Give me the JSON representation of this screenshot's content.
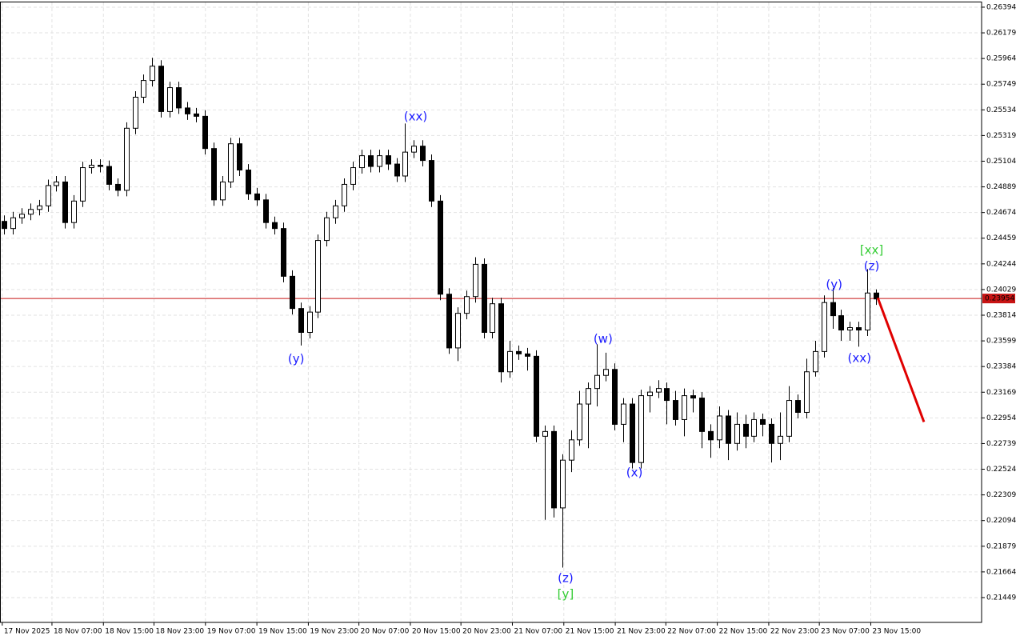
{
  "chart_data": {
    "type": "candlestick",
    "open": [
      0.246,
      0.2454,
      0.2463,
      0.2466,
      0.247,
      0.2473,
      0.249,
      0.2493,
      0.2459,
      0.2477,
      0.2505,
      0.2507,
      0.2506,
      0.2491,
      0.2486,
      0.2538,
      0.2564,
      0.2578,
      0.259,
      0.2552,
      0.2572,
      0.2555,
      0.255,
      0.2548,
      0.2521,
      0.2478,
      0.2493,
      0.2525,
      0.2503,
      0.2483,
      0.2478,
      0.2459,
      0.2454,
      0.2414,
      0.2387,
      0.2367,
      0.2384,
      0.2444,
      0.2463,
      0.2473,
      0.2491,
      0.2505,
      0.2515,
      0.2506,
      0.2515,
      0.2508,
      0.2498,
      0.2518,
      0.2523,
      0.2511,
      0.2477,
      0.2399,
      0.2354,
      0.2383,
      0.2397,
      0.2424,
      0.2367,
      0.2391,
      0.2334,
      0.2351,
      0.2349,
      0.2347,
      0.228,
      0.2284,
      0.222,
      0.226,
      0.2277,
      0.2307,
      0.232,
      0.2331,
      0.2336,
      0.229,
      0.2307,
      0.2258,
      0.2314,
      0.2317,
      0.232,
      0.231,
      0.2294,
      0.2314,
      0.2312,
      0.2284,
      0.2277,
      0.2297,
      0.2274,
      0.229,
      0.228,
      0.2294,
      0.229,
      0.2274,
      0.228,
      0.231,
      0.23,
      0.2334,
      0.2351,
      0.2392,
      0.2381,
      0.2369,
      0.2371,
      0.2369,
      0.24
    ],
    "high": [
      0.2465,
      0.2468,
      0.2471,
      0.2475,
      0.2478,
      0.2495,
      0.2498,
      0.2498,
      0.2482,
      0.251,
      0.2512,
      0.2512,
      0.2511,
      0.2496,
      0.2543,
      0.2569,
      0.2583,
      0.2597,
      0.2595,
      0.2577,
      0.2577,
      0.256,
      0.2555,
      0.2553,
      0.2526,
      0.2498,
      0.253,
      0.253,
      0.2508,
      0.2488,
      0.2483,
      0.2464,
      0.2459,
      0.2419,
      0.2392,
      0.2389,
      0.2449,
      0.2468,
      0.2478,
      0.2496,
      0.251,
      0.252,
      0.252,
      0.252,
      0.252,
      0.2513,
      0.2542,
      0.2528,
      0.2528,
      0.2516,
      0.2482,
      0.2404,
      0.2388,
      0.2402,
      0.243,
      0.2429,
      0.2396,
      0.2396,
      0.236,
      0.2356,
      0.2354,
      0.2352,
      0.2289,
      0.2289,
      0.2265,
      0.2285,
      0.2318,
      0.2325,
      0.2357,
      0.235,
      0.2341,
      0.2312,
      0.2312,
      0.2319,
      0.2322,
      0.2327,
      0.2325,
      0.2318,
      0.232,
      0.2319,
      0.2317,
      0.229,
      0.2305,
      0.2302,
      0.23,
      0.2298,
      0.23,
      0.2299,
      0.2295,
      0.23,
      0.2322,
      0.2315,
      0.2345,
      0.236,
      0.2398,
      0.2404,
      0.2386,
      0.2376,
      0.2376,
      0.242,
      0.2403
    ],
    "low": [
      0.2449,
      0.2449,
      0.2458,
      0.2461,
      0.2465,
      0.2468,
      0.2485,
      0.2454,
      0.2454,
      0.2472,
      0.25,
      0.2501,
      0.2486,
      0.2481,
      0.2481,
      0.2533,
      0.2559,
      0.2573,
      0.2547,
      0.2547,
      0.255,
      0.2545,
      0.2543,
      0.2516,
      0.2473,
      0.2473,
      0.2488,
      0.2498,
      0.2478,
      0.2473,
      0.2454,
      0.2449,
      0.2409,
      0.2382,
      0.2356,
      0.2362,
      0.2379,
      0.2439,
      0.2458,
      0.2468,
      0.2486,
      0.25,
      0.2501,
      0.2501,
      0.2503,
      0.2493,
      0.2493,
      0.2513,
      0.2506,
      0.2472,
      0.2394,
      0.2349,
      0.2343,
      0.2378,
      0.2392,
      0.2362,
      0.2362,
      0.2325,
      0.2329,
      0.2344,
      0.2335,
      0.2275,
      0.221,
      0.2212,
      0.217,
      0.225,
      0.2272,
      0.227,
      0.2305,
      0.2326,
      0.2285,
      0.2275,
      0.2253,
      0.2253,
      0.23,
      0.2312,
      0.229,
      0.2289,
      0.228,
      0.23,
      0.227,
      0.2262,
      0.227,
      0.226,
      0.2268,
      0.227,
      0.2275,
      0.228,
      0.2258,
      0.226,
      0.2275,
      0.2295,
      0.2295,
      0.233,
      0.2346,
      0.237,
      0.236,
      0.236,
      0.2355,
      0.2364,
      0.239
    ],
    "close": [
      0.2454,
      0.2463,
      0.2466,
      0.247,
      0.2473,
      0.249,
      0.2493,
      0.2459,
      0.2477,
      0.2505,
      0.2507,
      0.2506,
      0.2491,
      0.2486,
      0.2538,
      0.2564,
      0.2578,
      0.259,
      0.2552,
      0.2572,
      0.2555,
      0.255,
      0.2548,
      0.2521,
      0.2478,
      0.2493,
      0.2525,
      0.2503,
      0.2483,
      0.2478,
      0.2459,
      0.2454,
      0.2414,
      0.2387,
      0.2367,
      0.2384,
      0.2444,
      0.2463,
      0.2473,
      0.2491,
      0.2505,
      0.2515,
      0.2506,
      0.2515,
      0.2508,
      0.2498,
      0.2518,
      0.2523,
      0.2511,
      0.2477,
      0.2399,
      0.2354,
      0.2383,
      0.2397,
      0.2424,
      0.2367,
      0.2391,
      0.2334,
      0.2351,
      0.2349,
      0.2347,
      0.228,
      0.2284,
      0.222,
      0.226,
      0.2277,
      0.2307,
      0.232,
      0.2331,
      0.2336,
      0.229,
      0.2307,
      0.2258,
      0.2314,
      0.2317,
      0.232,
      0.231,
      0.2294,
      0.2314,
      0.2312,
      0.2284,
      0.2277,
      0.2297,
      0.2274,
      0.229,
      0.228,
      0.2294,
      0.229,
      0.2274,
      0.228,
      0.231,
      0.23,
      0.2334,
      0.2351,
      0.2392,
      0.2381,
      0.2369,
      0.2371,
      0.2369,
      0.24,
      0.2395
    ],
    "bull_color": "#ffffff",
    "bear_color": "#000000",
    "xlim": [
      -0.459,
      112.11
    ],
    "ylim": [
      0.21241,
      0.26434
    ],
    "yticks": [
      0.26394,
      0.26179,
      0.25964,
      0.25749,
      0.25534,
      0.25319,
      0.25104,
      0.24889,
      0.24674,
      0.24459,
      0.24244,
      0.24029,
      0.23814,
      0.23599,
      0.23384,
      0.23169,
      0.22954,
      0.22739,
      0.22524,
      0.22309,
      0.22094,
      0.21879,
      0.21664,
      0.21449
    ],
    "xticks": [
      {
        "value": -0.2,
        "label": "17 Nov 2025"
      },
      {
        "value": 5.5,
        "label": "18 Nov 07:00"
      },
      {
        "value": 11.4,
        "label": "18 Nov 15:00"
      },
      {
        "value": 17.2,
        "label": "18 Nov 23:00"
      },
      {
        "value": 23.1,
        "label": "19 Nov 07:00"
      },
      {
        "value": 29,
        "label": "19 Nov 15:00"
      },
      {
        "value": 34.9,
        "label": "19 Nov 23:00"
      },
      {
        "value": 40.7,
        "label": "20 Nov 07:00"
      },
      {
        "value": 46.6,
        "label": "20 Nov 15:00"
      },
      {
        "value": 52.4,
        "label": "20 Nov 23:00"
      },
      {
        "value": 58.3,
        "label": "21 Nov 07:00"
      },
      {
        "value": 64.2,
        "label": "21 Nov 15:00"
      },
      {
        "value": 70.1,
        "label": "21 Nov 23:00"
      },
      {
        "value": 75.9,
        "label": "22 Nov 07:00"
      },
      {
        "value": 81.8,
        "label": "22 Nov 15:00"
      },
      {
        "value": 87.7,
        "label": "22 Nov 23:00"
      },
      {
        "value": 93.5,
        "label": "23 Nov 07:00"
      },
      {
        "value": 99.4,
        "label": "23 Nov 15:00"
      }
    ],
    "grid": true,
    "current_price": 0.23954,
    "current_price_color": "#c81414",
    "annotations": [
      {
        "text": "(xx)",
        "x": 47.2,
        "y": 0.25476,
        "color": "#1a1aff"
      },
      {
        "text": "(y)",
        "x": 33.5,
        "y": 0.23446,
        "color": "#1a1aff"
      },
      {
        "text": "(w)",
        "x": 68.7,
        "y": 0.23613,
        "color": "#1a1aff"
      },
      {
        "text": "(x)",
        "x": 72.3,
        "y": 0.22494,
        "color": "#1a1aff"
      },
      {
        "text": "(z)",
        "x": 64.4,
        "y": 0.2161,
        "color": "#1a1aff"
      },
      {
        "text": "[y]",
        "x": 64.4,
        "y": 0.21476,
        "color": "#33cc33"
      },
      {
        "text": "(y)",
        "x": 95.2,
        "y": 0.24069,
        "color": "#1a1aff"
      },
      {
        "text": "(xx)",
        "x": 98.1,
        "y": 0.23452,
        "color": "#1a1aff"
      },
      {
        "text": "(z)",
        "x": 99.5,
        "y": 0.24223,
        "color": "#1a1aff"
      },
      {
        "text": "[xx]",
        "x": 99.5,
        "y": 0.24357,
        "color": "#33cc33"
      }
    ],
    "forecast_line": {
      "x": [
        100.2,
        105.5
      ],
      "y": [
        0.2396,
        0.2292
      ],
      "color": "#e00000"
    }
  }
}
